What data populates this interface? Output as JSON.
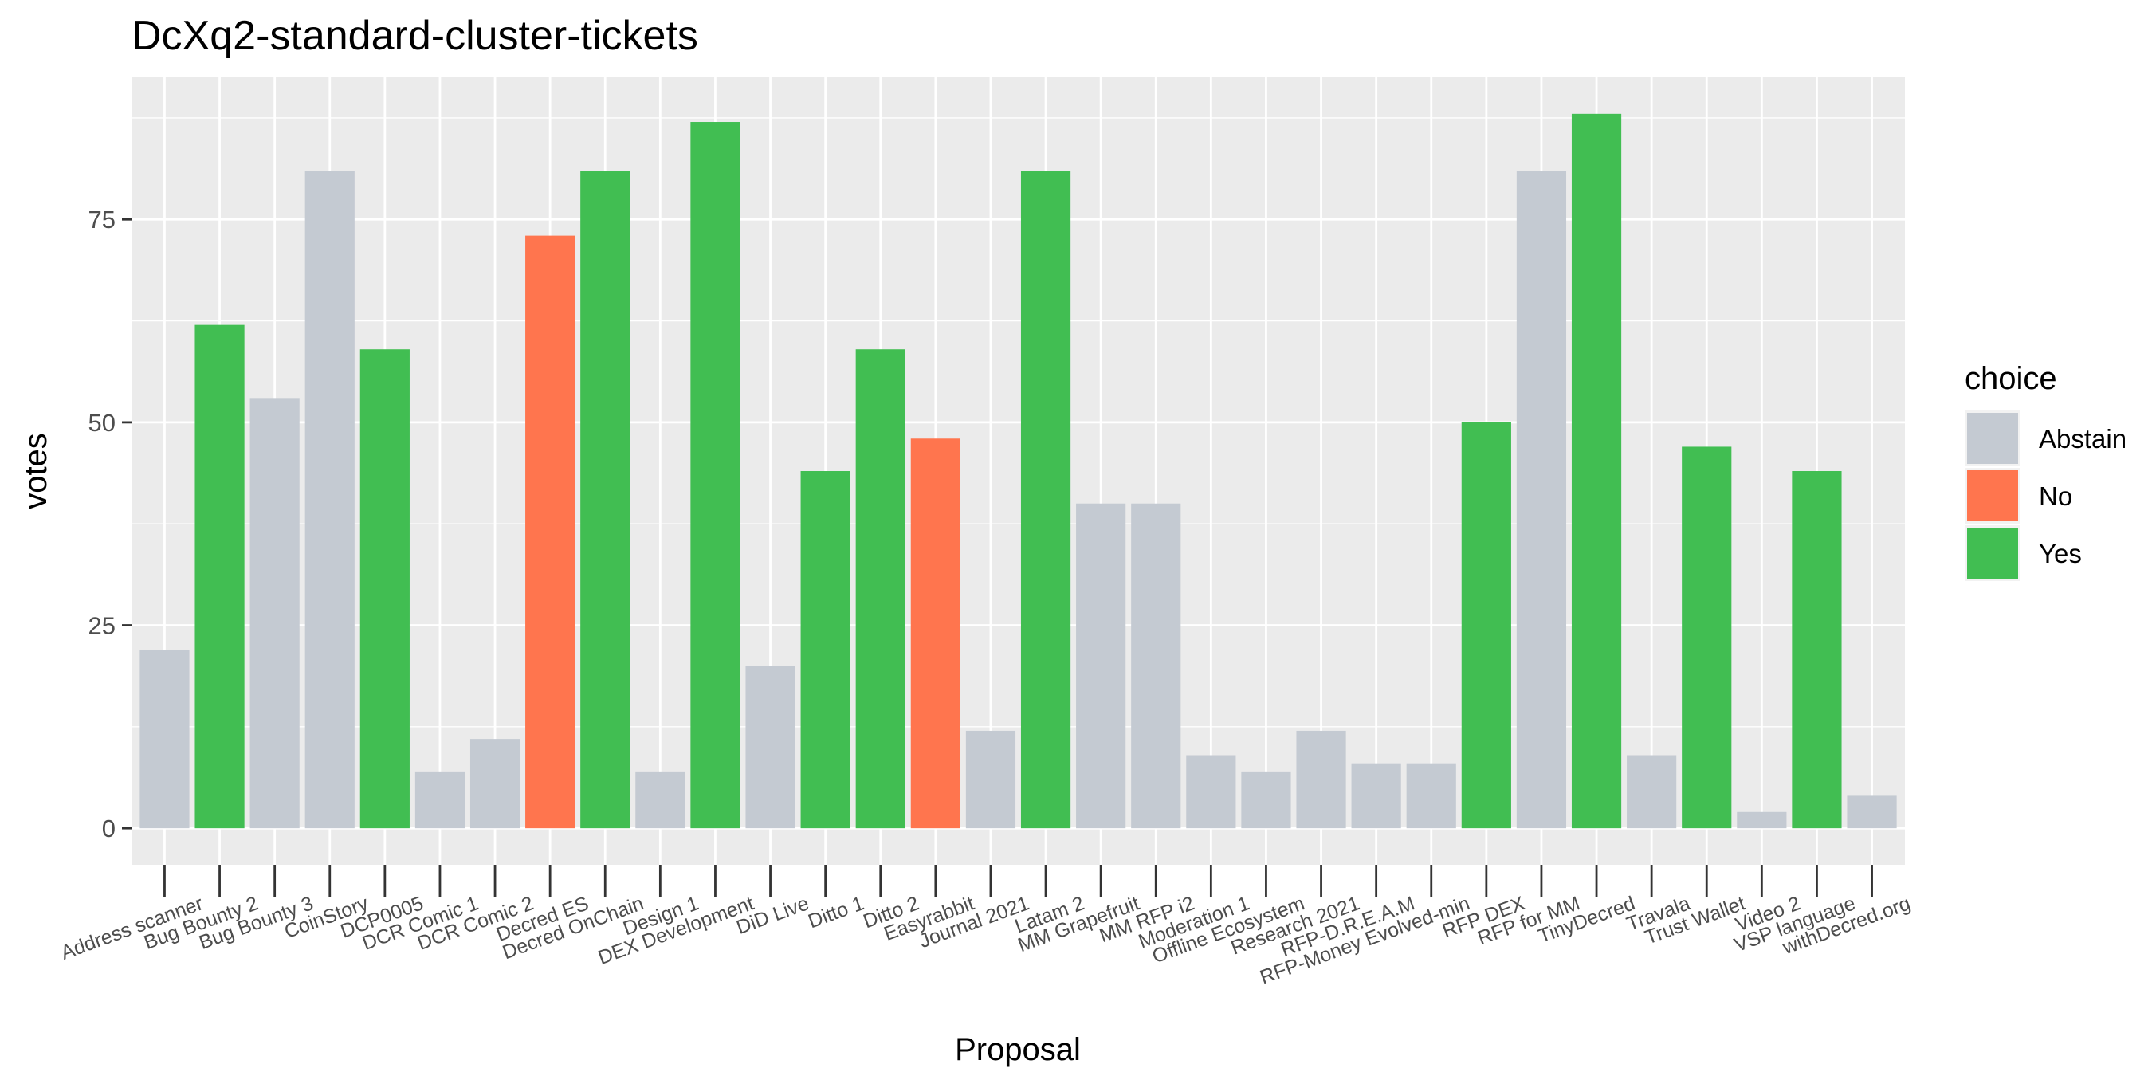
{
  "chart_data": {
    "type": "bar",
    "title": "DcXq2-standard-cluster-tickets",
    "xlabel": "Proposal",
    "ylabel": "votes",
    "ylim": [
      -4.5,
      92.5
    ],
    "yticks": [
      0,
      25,
      50,
      75
    ],
    "grid": true,
    "legend": {
      "title": "choice",
      "placement": "right",
      "entries": [
        {
          "label": "Abstain",
          "color": "#C4CAD2"
        },
        {
          "label": "No",
          "color": "#FF754E"
        },
        {
          "label": "Yes",
          "color": "#41BE52"
        }
      ]
    },
    "categories": [
      "Address scanner",
      "Bug Bounty 2",
      "Bug Bounty 3",
      "CoinStory",
      "DCP0005",
      "DCR Comic 1",
      "DCR Comic 2",
      "Decred ES",
      "Decred OnChain",
      "Design 1",
      "DEX Development",
      "DiD Live",
      "Ditto 1",
      "Ditto 2",
      "Easyrabbit",
      "Journal 2021",
      "Latam 2",
      "MM Grapefruit",
      "MM RFP i2",
      "Moderation 1",
      "Offline Ecosystem",
      "Research 2021",
      "RFP-D.R.E.A.M",
      "RFP-Money Evolved-min",
      "RFP DEX",
      "RFP for MM",
      "TinyDecred",
      "Travala",
      "Trust Wallet",
      "Video 2",
      "VSP language",
      "withDecred.org"
    ],
    "values": [
      22,
      62,
      53,
      81,
      59,
      7,
      11,
      73,
      81,
      7,
      87,
      20,
      44,
      59,
      48,
      12,
      81,
      40,
      40,
      9,
      7,
      12,
      8,
      8,
      50,
      81,
      88,
      9,
      47,
      2,
      44,
      4
    ],
    "choices": [
      "Abstain",
      "Yes",
      "Abstain",
      "Abstain",
      "Yes",
      "Abstain",
      "Abstain",
      "No",
      "Yes",
      "Abstain",
      "Yes",
      "Abstain",
      "Yes",
      "Yes",
      "No",
      "Abstain",
      "Yes",
      "Abstain",
      "Abstain",
      "Abstain",
      "Abstain",
      "Abstain",
      "Abstain",
      "Abstain",
      "Yes",
      "Abstain",
      "Yes",
      "Abstain",
      "Yes",
      "Abstain",
      "Yes",
      "Abstain"
    ]
  }
}
